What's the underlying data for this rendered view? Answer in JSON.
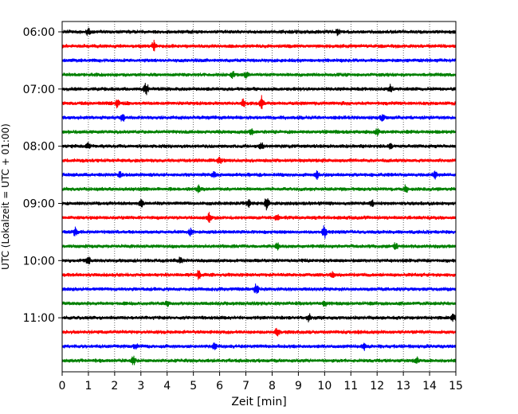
{
  "chart_data": {
    "type": "line",
    "title": "",
    "xlabel": "Zeit  [min]",
    "ylabel": "UTC (Lokalzeit = UTC + 01:00)",
    "xlim": [
      0,
      15
    ],
    "x_ticks": [
      "0",
      "1",
      "2",
      "3",
      "4",
      "5",
      "6",
      "7",
      "8",
      "9",
      "10",
      "11",
      "12",
      "13",
      "14",
      "15"
    ],
    "y_hour_start": "06:00",
    "y_hour_end": "11:45",
    "y_tick_labels": [
      "06:00",
      "07:00",
      "08:00",
      "09:00",
      "10:00",
      "11:00"
    ],
    "trace_interval_minutes": 15,
    "trace_colors": [
      "#000000",
      "#ff0000",
      "#0000ff",
      "#008000"
    ],
    "grid": "vertical dotted lines at each minute",
    "series": [
      {
        "start": "06:00",
        "color": "#000000",
        "events": [
          {
            "t": 1.0,
            "a": 4
          },
          {
            "t": 10.5,
            "a": 4
          }
        ]
      },
      {
        "start": "06:15",
        "color": "#ff0000",
        "events": [
          {
            "t": 3.5,
            "a": 6
          }
        ]
      },
      {
        "start": "06:30",
        "color": "#0000ff",
        "events": []
      },
      {
        "start": "06:45",
        "color": "#008000",
        "events": [
          {
            "t": 6.5,
            "a": 4
          },
          {
            "t": 7.0,
            "a": 3
          }
        ]
      },
      {
        "start": "07:00",
        "color": "#000000",
        "events": [
          {
            "t": 3.2,
            "a": 7
          },
          {
            "t": 12.5,
            "a": 4
          }
        ]
      },
      {
        "start": "07:15",
        "color": "#ff0000",
        "events": [
          {
            "t": 2.1,
            "a": 5
          },
          {
            "t": 6.9,
            "a": 6
          },
          {
            "t": 7.6,
            "a": 8
          }
        ]
      },
      {
        "start": "07:30",
        "color": "#0000ff",
        "events": [
          {
            "t": 2.3,
            "a": 5
          },
          {
            "t": 12.2,
            "a": 4
          }
        ]
      },
      {
        "start": "07:45",
        "color": "#008000",
        "events": [
          {
            "t": 7.2,
            "a": 4
          },
          {
            "t": 12.0,
            "a": 4
          }
        ]
      },
      {
        "start": "08:00",
        "color": "#000000",
        "events": [
          {
            "t": 1.0,
            "a": 4
          },
          {
            "t": 7.6,
            "a": 4
          },
          {
            "t": 12.5,
            "a": 4
          }
        ]
      },
      {
        "start": "08:15",
        "color": "#ff0000",
        "events": [
          {
            "t": 6.0,
            "a": 4
          }
        ]
      },
      {
        "start": "08:30",
        "color": "#0000ff",
        "events": [
          {
            "t": 2.2,
            "a": 3
          },
          {
            "t": 5.8,
            "a": 4
          },
          {
            "t": 9.7,
            "a": 6
          },
          {
            "t": 14.2,
            "a": 4
          }
        ]
      },
      {
        "start": "08:45",
        "color": "#008000",
        "events": [
          {
            "t": 5.2,
            "a": 4
          },
          {
            "t": 13.1,
            "a": 5
          }
        ]
      },
      {
        "start": "09:00",
        "color": "#000000",
        "events": [
          {
            "t": 3.0,
            "a": 5
          },
          {
            "t": 7.1,
            "a": 4
          },
          {
            "t": 7.8,
            "a": 9
          },
          {
            "t": 11.8,
            "a": 5
          }
        ]
      },
      {
        "start": "09:15",
        "color": "#ff0000",
        "events": [
          {
            "t": 5.6,
            "a": 6
          },
          {
            "t": 8.2,
            "a": 4
          }
        ]
      },
      {
        "start": "09:30",
        "color": "#0000ff",
        "events": [
          {
            "t": 0.5,
            "a": 5
          },
          {
            "t": 4.9,
            "a": 4
          },
          {
            "t": 10.0,
            "a": 8
          }
        ]
      },
      {
        "start": "09:45",
        "color": "#008000",
        "events": [
          {
            "t": 8.2,
            "a": 4
          },
          {
            "t": 12.7,
            "a": 4
          }
        ]
      },
      {
        "start": "10:00",
        "color": "#000000",
        "events": [
          {
            "t": 1.0,
            "a": 4
          },
          {
            "t": 4.5,
            "a": 4
          }
        ]
      },
      {
        "start": "10:15",
        "color": "#ff0000",
        "events": [
          {
            "t": 5.2,
            "a": 5
          },
          {
            "t": 10.3,
            "a": 4
          }
        ]
      },
      {
        "start": "10:30",
        "color": "#0000ff",
        "events": [
          {
            "t": 7.4,
            "a": 6
          }
        ]
      },
      {
        "start": "10:45",
        "color": "#008000",
        "events": [
          {
            "t": 4.0,
            "a": 3
          },
          {
            "t": 10.0,
            "a": 4
          }
        ]
      },
      {
        "start": "11:00",
        "color": "#000000",
        "events": [
          {
            "t": 9.4,
            "a": 5
          },
          {
            "t": 14.9,
            "a": 4
          }
        ]
      },
      {
        "start": "11:15",
        "color": "#ff0000",
        "events": [
          {
            "t": 8.2,
            "a": 5
          }
        ]
      },
      {
        "start": "11:30",
        "color": "#0000ff",
        "events": [
          {
            "t": 2.8,
            "a": 3
          },
          {
            "t": 5.8,
            "a": 4
          },
          {
            "t": 11.5,
            "a": 4
          }
        ]
      },
      {
        "start": "11:45",
        "color": "#008000",
        "events": [
          {
            "t": 2.7,
            "a": 6
          },
          {
            "t": 13.5,
            "a": 4
          }
        ]
      }
    ]
  }
}
